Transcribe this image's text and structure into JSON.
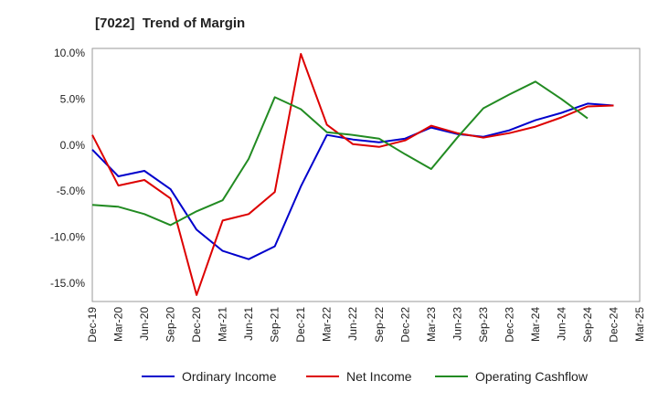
{
  "title": "[7022]  Trend of Margin",
  "chart_data": {
    "type": "line",
    "title": "[7022]  Trend of Margin",
    "x": [
      "Dec-19",
      "Mar-20",
      "Jun-20",
      "Sep-20",
      "Dec-20",
      "Mar-21",
      "Jun-21",
      "Sep-21",
      "Dec-21",
      "Mar-22",
      "Jun-22",
      "Sep-22",
      "Dec-22",
      "Mar-23",
      "Jun-23",
      "Sep-23",
      "Dec-23",
      "Mar-24",
      "Jun-24",
      "Sep-24",
      "Dec-24",
      "Mar-25"
    ],
    "y_ticks": [
      "10.0%",
      "5.0%",
      "0.0%",
      "-5.0%",
      "-10.0%",
      "-15.0%"
    ],
    "y_tick_values": [
      10,
      5,
      0,
      -5,
      -10,
      -15
    ],
    "ylim": [
      -17,
      10.5
    ],
    "grid": true,
    "legend_position": "bottom",
    "series": [
      {
        "name": "Ordinary Income",
        "color": "#0000cc",
        "values": [
          -0.5,
          -3.4,
          -2.8,
          -4.8,
          -9.2,
          -11.5,
          -12.4,
          -11.0,
          -4.5,
          1.1,
          0.6,
          0.3,
          0.7,
          1.9,
          1.2,
          0.9,
          1.6,
          2.7,
          3.5,
          4.5,
          4.3,
          null
        ]
      },
      {
        "name": "Net Income",
        "color": "#dd0000",
        "values": [
          1.1,
          -4.4,
          -3.8,
          -5.8,
          -16.3,
          -8.2,
          -7.5,
          -5.1,
          9.9,
          2.2,
          0.1,
          -0.2,
          0.5,
          2.1,
          1.3,
          0.8,
          1.3,
          2.0,
          3.0,
          4.2,
          4.3,
          null
        ]
      },
      {
        "name": "Operating Cashflow",
        "color": "#228b22",
        "values": [
          -6.5,
          -6.7,
          -7.5,
          -8.7,
          -7.2,
          -6.0,
          -1.5,
          5.2,
          3.9,
          1.4,
          1.1,
          0.7,
          -1.0,
          -2.6,
          0.8,
          4.0,
          5.5,
          6.9,
          5.0,
          2.9,
          null,
          null
        ]
      }
    ]
  }
}
